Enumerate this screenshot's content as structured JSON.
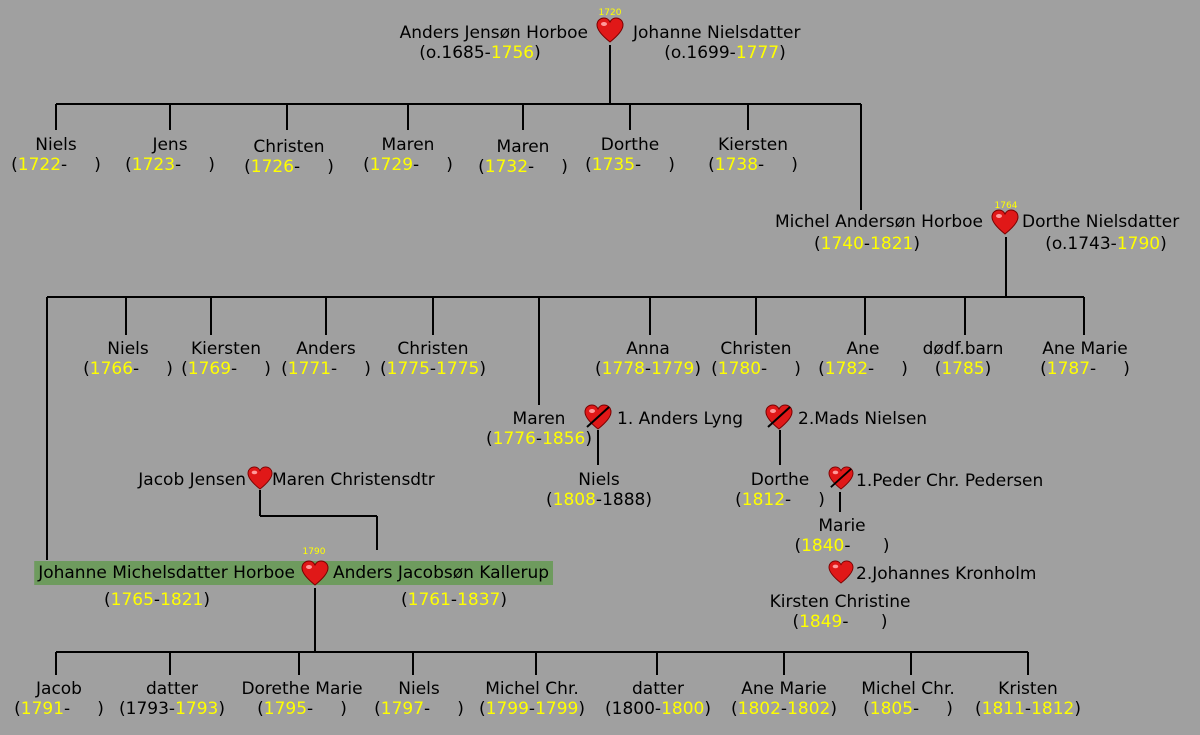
{
  "colors": {
    "background": "#a0a0a0",
    "year": "#ffff00",
    "line": "#000000",
    "highlight": "#6e9b5e",
    "heart": "#e01818"
  },
  "gen1": {
    "husband": {
      "name": "Anders Jensøn Horboe",
      "prefix": "(o.1685-",
      "death": "1756",
      "suffix": ")"
    },
    "wife": {
      "name": "Johanne Nielsdatter",
      "prefix": "(o.1699-",
      "death": "1777",
      "suffix": ")"
    },
    "marriage_year": "1720"
  },
  "gen1_children": [
    {
      "name": "Niels",
      "birth": "1722"
    },
    {
      "name": "Jens",
      "birth": "1723"
    },
    {
      "name": "Christen",
      "birth": "1726"
    },
    {
      "name": "Maren",
      "birth": "1729"
    },
    {
      "name": "Maren",
      "birth": "1732"
    },
    {
      "name": "Dorthe",
      "birth": "1735"
    },
    {
      "name": "Kiersten",
      "birth": "1738"
    }
  ],
  "gen2": {
    "husband": {
      "name": "Michel Andersøn Horboe",
      "birth": "1740",
      "death": "1821"
    },
    "wife": {
      "name": "Dorthe Nielsdatter",
      "prefix": "(o.1743-",
      "death": "1790",
      "suffix": ")"
    },
    "marriage_year": "1764"
  },
  "gen2_children": [
    {
      "name": "Niels",
      "birth": "1766",
      "death": ""
    },
    {
      "name": "Kiersten",
      "birth": "1769",
      "death": ""
    },
    {
      "name": "Anders",
      "birth": "1771",
      "death": ""
    },
    {
      "name": "Christen",
      "birth": "1775",
      "death": "1775"
    },
    {
      "name": "Anna",
      "birth": "1778",
      "death": "1779"
    },
    {
      "name": "Christen",
      "birth": "1780",
      "death": ""
    },
    {
      "name": "Ane",
      "birth": "1782",
      "death": ""
    },
    {
      "name": "dødf.barn",
      "birth": "1785"
    },
    {
      "name": "Ane Marie",
      "birth": "1787",
      "death": ""
    }
  ],
  "maren": {
    "name": "Maren",
    "birth": "1776",
    "death": "1856",
    "spouse1": "1. Anders Lyng",
    "spouse2": "2.Mads Nielsen",
    "child1": {
      "name": "Niels",
      "birth": "1808",
      "death": "1888"
    },
    "child2": {
      "name": "Dorthe",
      "birth": "1812",
      "spouse1": "1.Peder Chr. Pedersen",
      "spouse2": "2.Johannes Kronholm",
      "child1": {
        "name": "Marie",
        "birth": "1840"
      },
      "child2": {
        "name": "Kirsten Christine",
        "birth": "1849"
      }
    }
  },
  "jacob_couple": {
    "husband": "Jacob Jensen",
    "wife": "Maren Christensdtr"
  },
  "gen3": {
    "wife": {
      "name": "Johanne Michelsdatter Horboe",
      "birth": "1765",
      "death": "1821"
    },
    "husband": {
      "name": "Anders Jacobsøn Kallerup",
      "birth": "1761",
      "death": "1837"
    },
    "marriage_year": "1790"
  },
  "gen3_children": [
    {
      "name": "Jacob",
      "birth": "1791",
      "death": ""
    },
    {
      "name": "datter",
      "birth": "1793",
      "death": "1793"
    },
    {
      "name": "Dorethe Marie",
      "birth": "1795",
      "death": ""
    },
    {
      "name": "Niels",
      "birth": "1797",
      "death": ""
    },
    {
      "name": "Michel Chr.",
      "birth": "1799",
      "death": "1799"
    },
    {
      "name": "datter",
      "birth": "1800",
      "death": "1800"
    },
    {
      "name": "Ane Marie",
      "birth": "1802",
      "death": "1802"
    },
    {
      "name": "Michel Chr.",
      "birth": "1805",
      "death": ""
    },
    {
      "name": "Kristen",
      "birth": "1811",
      "death": "1812"
    }
  ]
}
